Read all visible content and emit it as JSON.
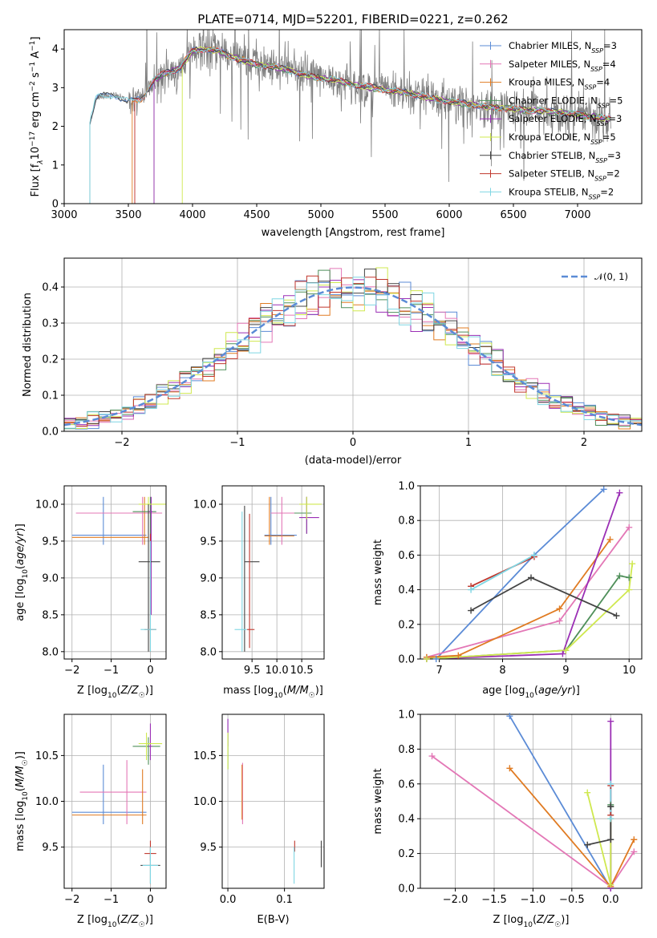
{
  "figure": {
    "title": "PLATE=0714, MJD=52201, FIBERID=0221, z=0.262"
  },
  "models": [
    {
      "name": "Chabrier MILES",
      "nssp": "3",
      "color": "#5b8bd6"
    },
    {
      "name": "Salpeter MILES",
      "nssp": "4",
      "color": "#e377b6"
    },
    {
      "name": "Kroupa MILES",
      "nssp": "4",
      "color": "#e07b22"
    },
    {
      "name": "Chabrier ELODIE",
      "nssp": "5",
      "color": "#4f8f5a"
    },
    {
      "name": "Salpeter ELODIE",
      "nssp": "3",
      "color": "#9b2fb5"
    },
    {
      "name": "Kroupa ELODIE",
      "nssp": "5",
      "color": "#cfe84f"
    },
    {
      "name": "Chabrier STELIB",
      "nssp": "3",
      "color": "#444444"
    },
    {
      "name": "Salpeter STELIB",
      "nssp": "2",
      "color": "#c0362c"
    },
    {
      "name": "Kroupa STELIB",
      "nssp": "2",
      "color": "#7fd6e3"
    }
  ],
  "chart_data": [
    {
      "id": "spectrum",
      "type": "line",
      "xlabel": "wavelength [Angstrom, rest frame]",
      "ylabel": "Flux [f_λ10^-17 erg cm^-2 s^-1 A^-1]",
      "xlim": [
        3000,
        7500
      ],
      "ylim": [
        0,
        4.5
      ],
      "xticks": [
        3000,
        3500,
        4000,
        4500,
        5000,
        5500,
        6000,
        6500,
        7000
      ],
      "yticks": [
        0,
        1,
        2,
        3,
        4
      ],
      "data_profile": {
        "x": [
          3200,
          3250,
          3300,
          3400,
          3500,
          3600,
          3700,
          3800,
          3900,
          4000,
          4100,
          4200,
          4300,
          4500,
          4700,
          4900,
          5100,
          5300,
          5500,
          5700,
          5900,
          6100,
          6300,
          6500,
          6700,
          6900,
          7100,
          7250
        ],
        "y": [
          2.1,
          2.75,
          2.8,
          2.8,
          2.65,
          2.7,
          3.2,
          3.4,
          3.5,
          3.95,
          4.0,
          3.95,
          3.8,
          3.6,
          3.5,
          3.3,
          3.2,
          3.05,
          2.95,
          2.85,
          2.7,
          2.6,
          2.5,
          2.45,
          2.4,
          2.35,
          2.25,
          2.2
        ]
      },
      "model_start": [
        3200,
        3550,
        3530,
        3700,
        3700,
        3920,
        3200,
        3550,
        3200
      ]
    },
    {
      "id": "residuals",
      "type": "histogram",
      "xlabel": "(data-model)/error",
      "ylabel": "Normed distribution",
      "xlim": [
        -2.5,
        2.5
      ],
      "ylim": [
        0,
        0.48
      ],
      "xticks": [
        -2,
        -1,
        0,
        1,
        2
      ],
      "yticks": [
        0.0,
        0.1,
        0.2,
        0.3,
        0.4
      ],
      "xtick_labels": [
        "−2",
        "−1",
        "0",
        "1",
        "2"
      ],
      "ytick_labels": [
        "0.0",
        "0.1",
        "0.2",
        "0.3",
        "0.4"
      ],
      "bin_width": 0.1,
      "reference_label": "𝒩(0, 1)",
      "reference_color": "#5b8bd6"
    },
    {
      "id": "z_age",
      "type": "errorbar",
      "xlabel": "Z [log10(Z/Z☉)]",
      "ylabel": "age  [log10(age/yr)]",
      "xlim": [
        -2.2,
        0.4
      ],
      "ylim": [
        7.9,
        10.25
      ],
      "xticks": [
        -2,
        -1,
        0
      ],
      "yticks": [
        8.0,
        8.5,
        9.0,
        9.5,
        10.0
      ],
      "xtick_labels": [
        "−2",
        "−1",
        "0"
      ],
      "ytick_labels": [
        "8.0",
        "8.5",
        "9.0",
        "9.5",
        "10.0"
      ],
      "points": [
        {
          "m": 0,
          "x": -1.2,
          "y": 9.58,
          "xe": [
            -2.0,
            -0.1
          ],
          "ye": [
            9.45,
            10.1
          ]
        },
        {
          "m": 1,
          "x": -0.2,
          "y": 9.88,
          "xe": [
            -1.9,
            0.3
          ],
          "ye": [
            9.45,
            10.1
          ]
        },
        {
          "m": 2,
          "x": -0.15,
          "y": 9.55,
          "xe": [
            -2.0,
            -0.05
          ],
          "ye": [
            9.45,
            10.1
          ]
        },
        {
          "m": 3,
          "x": 0.0,
          "y": 9.9,
          "xe": [
            -0.45,
            0.15
          ],
          "ye": [
            8.0,
            10.1
          ]
        },
        {
          "m": 4,
          "x": 0.02,
          "y": 9.9,
          "xe": [
            -0.05,
            0.05
          ],
          "ye": [
            8.5,
            10.1
          ]
        },
        {
          "m": 5,
          "x": -0.05,
          "y": 10.0,
          "xe": [
            -0.3,
            0.4
          ],
          "ye": [
            9.8,
            10.1
          ]
        },
        {
          "m": 6,
          "x": -0.05,
          "y": 9.22,
          "xe": [
            -0.3,
            0.25
          ],
          "ye": [
            8.0,
            10.0
          ]
        },
        {
          "m": 7,
          "x": 0.0,
          "y": 8.3,
          "xe": [
            -0.15,
            0.15
          ],
          "ye": [
            8.0,
            9.6
          ]
        },
        {
          "m": 8,
          "x": 0.0,
          "y": 8.3,
          "xe": [
            -0.25,
            0.15
          ],
          "ye": [
            8.0,
            9.5
          ]
        }
      ]
    },
    {
      "id": "mass_age",
      "type": "errorbar",
      "xlabel": "mass [log10(M/M☉)]",
      "ylabel": "",
      "xlim": [
        8.9,
        10.95
      ],
      "ylim": [
        7.9,
        10.25
      ],
      "xticks": [
        9.5,
        10.0,
        10.5
      ],
      "yticks": [
        8.0,
        8.5,
        9.0,
        9.5,
        10.0
      ],
      "xtick_labels": [
        "9.5",
        "10.0",
        "10.5"
      ],
      "ytick_labels": [
        "8.0",
        "8.5",
        "9.0",
        "9.5",
        "10.0"
      ],
      "points": [
        {
          "m": 0,
          "x": 9.88,
          "y": 9.58,
          "xe": [
            9.75,
            10.4
          ],
          "ye": [
            9.45,
            10.1
          ]
        },
        {
          "m": 1,
          "x": 10.1,
          "y": 9.88,
          "xe": [
            9.88,
            10.45
          ],
          "ye": [
            9.45,
            10.1
          ]
        },
        {
          "m": 2,
          "x": 9.85,
          "y": 9.57,
          "xe": [
            9.75,
            10.35
          ],
          "ye": [
            9.45,
            10.1
          ]
        },
        {
          "m": 3,
          "x": 10.6,
          "y": 9.88,
          "xe": [
            10.35,
            10.7
          ],
          "ye": [
            9.6,
            10.1
          ]
        },
        {
          "m": 4,
          "x": 10.6,
          "y": 9.82,
          "xe": [
            10.45,
            10.85
          ],
          "ye": [
            9.6,
            10.1
          ]
        },
        {
          "m": 5,
          "x": 10.6,
          "y": 10.0,
          "xe": [
            10.45,
            10.9
          ],
          "ye": [
            9.8,
            10.1
          ]
        },
        {
          "m": 6,
          "x": 9.35,
          "y": 9.22,
          "xe": [
            9.35,
            9.65
          ],
          "ye": [
            8.0,
            9.98
          ]
        },
        {
          "m": 7,
          "x": 9.45,
          "y": 8.3,
          "xe": [
            9.4,
            9.55
          ],
          "ye": [
            8.05,
            9.87
          ]
        },
        {
          "m": 8,
          "x": 9.3,
          "y": 8.3,
          "xe": [
            9.15,
            9.4
          ],
          "ye": [
            8.0,
            9.9
          ]
        }
      ]
    },
    {
      "id": "age_weight",
      "type": "line",
      "xlabel": "age  [log10(age/yr)]",
      "ylabel": "mass weight",
      "xlim": [
        6.7,
        10.2
      ],
      "ylim": [
        0,
        1
      ],
      "xticks": [
        7,
        8,
        9,
        10
      ],
      "yticks": [
        0,
        0.2,
        0.4,
        0.6,
        0.8,
        1.0
      ],
      "xtick_labels": [
        "7",
        "8",
        "9",
        "10"
      ],
      "ytick_labels": [
        "0.0",
        "0.2",
        "0.4",
        "0.6",
        "0.8",
        "1.0"
      ],
      "series": [
        {
          "m": 0,
          "x": [
            6.95,
            8.5,
            9.6
          ],
          "y": [
            0.0,
            0.6,
            0.98
          ]
        },
        {
          "m": 1,
          "x": 6.8,
          "xs": [
            6.8,
            8.9,
            10.0
          ],
          "y": [
            0.01,
            0.22,
            0.76
          ]
        },
        {
          "m": 2,
          "x": [
            6.8,
            7.3,
            8.9,
            9.7
          ],
          "y": [
            0.01,
            0.02,
            0.29,
            0.69
          ]
        },
        {
          "m": 3,
          "x": [
            6.8,
            9.0,
            9.85,
            10.0
          ],
          "y": [
            0.0,
            0.05,
            0.48,
            0.47
          ]
        },
        {
          "m": 4,
          "x": [
            6.8,
            8.95,
            9.85
          ],
          "y": [
            0.0,
            0.03,
            0.96
          ]
        },
        {
          "m": 5,
          "x": [
            6.8,
            9.0,
            10.0,
            10.05
          ],
          "y": [
            0.0,
            0.05,
            0.4,
            0.55
          ]
        },
        {
          "m": 6,
          "x": [
            7.5,
            8.45,
            9.8
          ],
          "y": [
            0.28,
            0.47,
            0.25
          ]
        },
        {
          "m": 7,
          "x": [
            7.5,
            8.5
          ],
          "y": [
            0.42,
            0.59
          ]
        },
        {
          "m": 8,
          "x": [
            7.5,
            8.5
          ],
          "y": [
            0.4,
            0.6
          ]
        }
      ]
    },
    {
      "id": "z_mass",
      "type": "errorbar",
      "xlabel": "Z [log10(Z/Z☉)]",
      "ylabel": "mass [log10(M/M☉)]",
      "xlim": [
        -2.2,
        0.4
      ],
      "ylim": [
        9.05,
        10.95
      ],
      "xticks": [
        -2,
        -1,
        0
      ],
      "yticks": [
        9.5,
        10.0,
        10.5
      ],
      "xtick_labels": [
        "−2",
        "−1",
        "0"
      ],
      "ytick_labels": [
        "9.5",
        "10.0",
        "10.5"
      ],
      "points": [
        {
          "m": 0,
          "x": -1.2,
          "y": 9.88,
          "xe": [
            -2.0,
            -0.1
          ],
          "ye": [
            9.75,
            10.4
          ]
        },
        {
          "m": 1,
          "x": -0.6,
          "y": 10.1,
          "xe": [
            -1.8,
            -0.1
          ],
          "ye": [
            9.75,
            10.45
          ]
        },
        {
          "m": 2,
          "x": -0.2,
          "y": 9.85,
          "xe": [
            -2.0,
            -0.1
          ],
          "ye": [
            9.75,
            10.35
          ]
        },
        {
          "m": 3,
          "x": -0.05,
          "y": 10.6,
          "xe": [
            -0.45,
            0.25
          ],
          "ye": [
            10.4,
            10.7
          ]
        },
        {
          "m": 4,
          "x": 0.0,
          "y": 10.6,
          "xe": [
            -0.05,
            0.05
          ],
          "ye": [
            10.45,
            10.85
          ]
        },
        {
          "m": 5,
          "x": -0.1,
          "y": 10.63,
          "xe": [
            -0.3,
            0.3
          ],
          "ye": [
            10.45,
            10.75
          ]
        },
        {
          "m": 6,
          "x": 0.0,
          "y": 9.3,
          "xe": [
            -0.25,
            0.25
          ],
          "ye": [
            9.1,
            9.5
          ]
        },
        {
          "m": 7,
          "x": 0.0,
          "y": 9.43,
          "xe": [
            -0.15,
            0.15
          ],
          "ye": [
            9.35,
            9.57
          ]
        },
        {
          "m": 8,
          "x": 0.0,
          "y": 9.3,
          "xe": [
            -0.2,
            0.2
          ],
          "ye": [
            9.1,
            9.5
          ]
        }
      ]
    },
    {
      "id": "ebv_mass",
      "type": "errorbar",
      "xlabel": "E(B-V)",
      "ylabel": "",
      "xlim": [
        -0.01,
        0.17
      ],
      "ylim": [
        9.05,
        10.95
      ],
      "xticks": [
        0.0,
        0.1
      ],
      "yticks": [
        9.5,
        10.0,
        10.5
      ],
      "xtick_labels": [
        "0.0",
        "0.1"
      ],
      "ytick_labels": [
        "9.5",
        "10.0",
        "10.5"
      ],
      "points": [
        {
          "m": 0,
          "x": 0.0,
          "y": 10.6,
          "xe": [
            0.0,
            0.0
          ],
          "ye": [
            10.35,
            10.9
          ]
        },
        {
          "m": 1,
          "x": 0.026,
          "y": 10.1,
          "xe": [
            0.026,
            0.026
          ],
          "ye": [
            9.75,
            10.42
          ]
        },
        {
          "m": 2,
          "x": 0.025,
          "y": 10.05,
          "xe": [
            0.025,
            0.025
          ],
          "ye": [
            9.8,
            10.4
          ]
        },
        {
          "m": 3,
          "x": 0.0,
          "y": 10.6,
          "xe": [
            0.0,
            0.0
          ],
          "ye": [
            10.35,
            10.75
          ]
        },
        {
          "m": 4,
          "x": 0.0,
          "y": 10.75,
          "xe": [
            0.0,
            0.0
          ],
          "ye": [
            10.6,
            10.9
          ]
        },
        {
          "m": 5,
          "x": 0.0,
          "y": 10.5,
          "xe": [
            0.0,
            0.0
          ],
          "ye": [
            10.35,
            10.75
          ]
        },
        {
          "m": 6,
          "x": 0.165,
          "y": 9.4,
          "xe": [
            0.165,
            0.165
          ],
          "ye": [
            9.28,
            9.57
          ]
        },
        {
          "m": 7,
          "x": 0.118,
          "y": 9.5,
          "xe": [
            0.118,
            0.118
          ],
          "ye": [
            9.45,
            9.57
          ]
        },
        {
          "m": 8,
          "x": 0.117,
          "y": 9.3,
          "xe": [
            0.117,
            0.117
          ],
          "ye": [
            9.1,
            9.5
          ]
        }
      ]
    },
    {
      "id": "z_weight",
      "type": "line",
      "xlabel": "Z [log10(Z/Z☉)]",
      "ylabel": "mass weight",
      "xlim": [
        -2.45,
        0.4
      ],
      "ylim": [
        0,
        1
      ],
      "xticks": [
        -2.0,
        -1.5,
        -1.0,
        -0.5,
        0.0
      ],
      "yticks": [
        0,
        0.2,
        0.4,
        0.6,
        0.8,
        1.0
      ],
      "xtick_labels": [
        "−2.0",
        "−1.5",
        "−1.0",
        "−0.5",
        "0.0"
      ],
      "ytick_labels": [
        "0.0",
        "0.2",
        "0.4",
        "0.6",
        "0.8",
        "1.0"
      ],
      "series": [
        {
          "m": 0,
          "x": [
            -1.3,
            0.0
          ],
          "y": [
            0.99,
            0.0
          ]
        },
        {
          "m": 1,
          "x": [
            -2.3,
            0.0,
            0.3
          ],
          "y": [
            0.76,
            0.01,
            0.21
          ]
        },
        {
          "m": 2,
          "x": [
            -1.3,
            0.0,
            0.3
          ],
          "y": [
            0.69,
            0.01,
            0.28
          ]
        },
        {
          "m": 3,
          "x": [
            0.0,
            0.0,
            0.0
          ],
          "y": [
            0.0,
            0.47,
            0.48
          ]
        },
        {
          "m": 4,
          "x": [
            0.0,
            0.0
          ],
          "y": [
            0.0,
            0.96
          ]
        },
        {
          "m": 5,
          "x": [
            -0.3,
            0.0,
            0.0
          ],
          "y": [
            0.55,
            0.02,
            0.4
          ]
        },
        {
          "m": 6,
          "x": [
            -0.3,
            0.0,
            0.0
          ],
          "y": [
            0.25,
            0.28,
            0.47
          ]
        },
        {
          "m": 7,
          "x": [
            0.0,
            0.0
          ],
          "y": [
            0.42,
            0.59
          ]
        },
        {
          "m": 8,
          "x": [
            0.0,
            0.0
          ],
          "y": [
            0.4,
            0.6
          ]
        }
      ]
    }
  ]
}
